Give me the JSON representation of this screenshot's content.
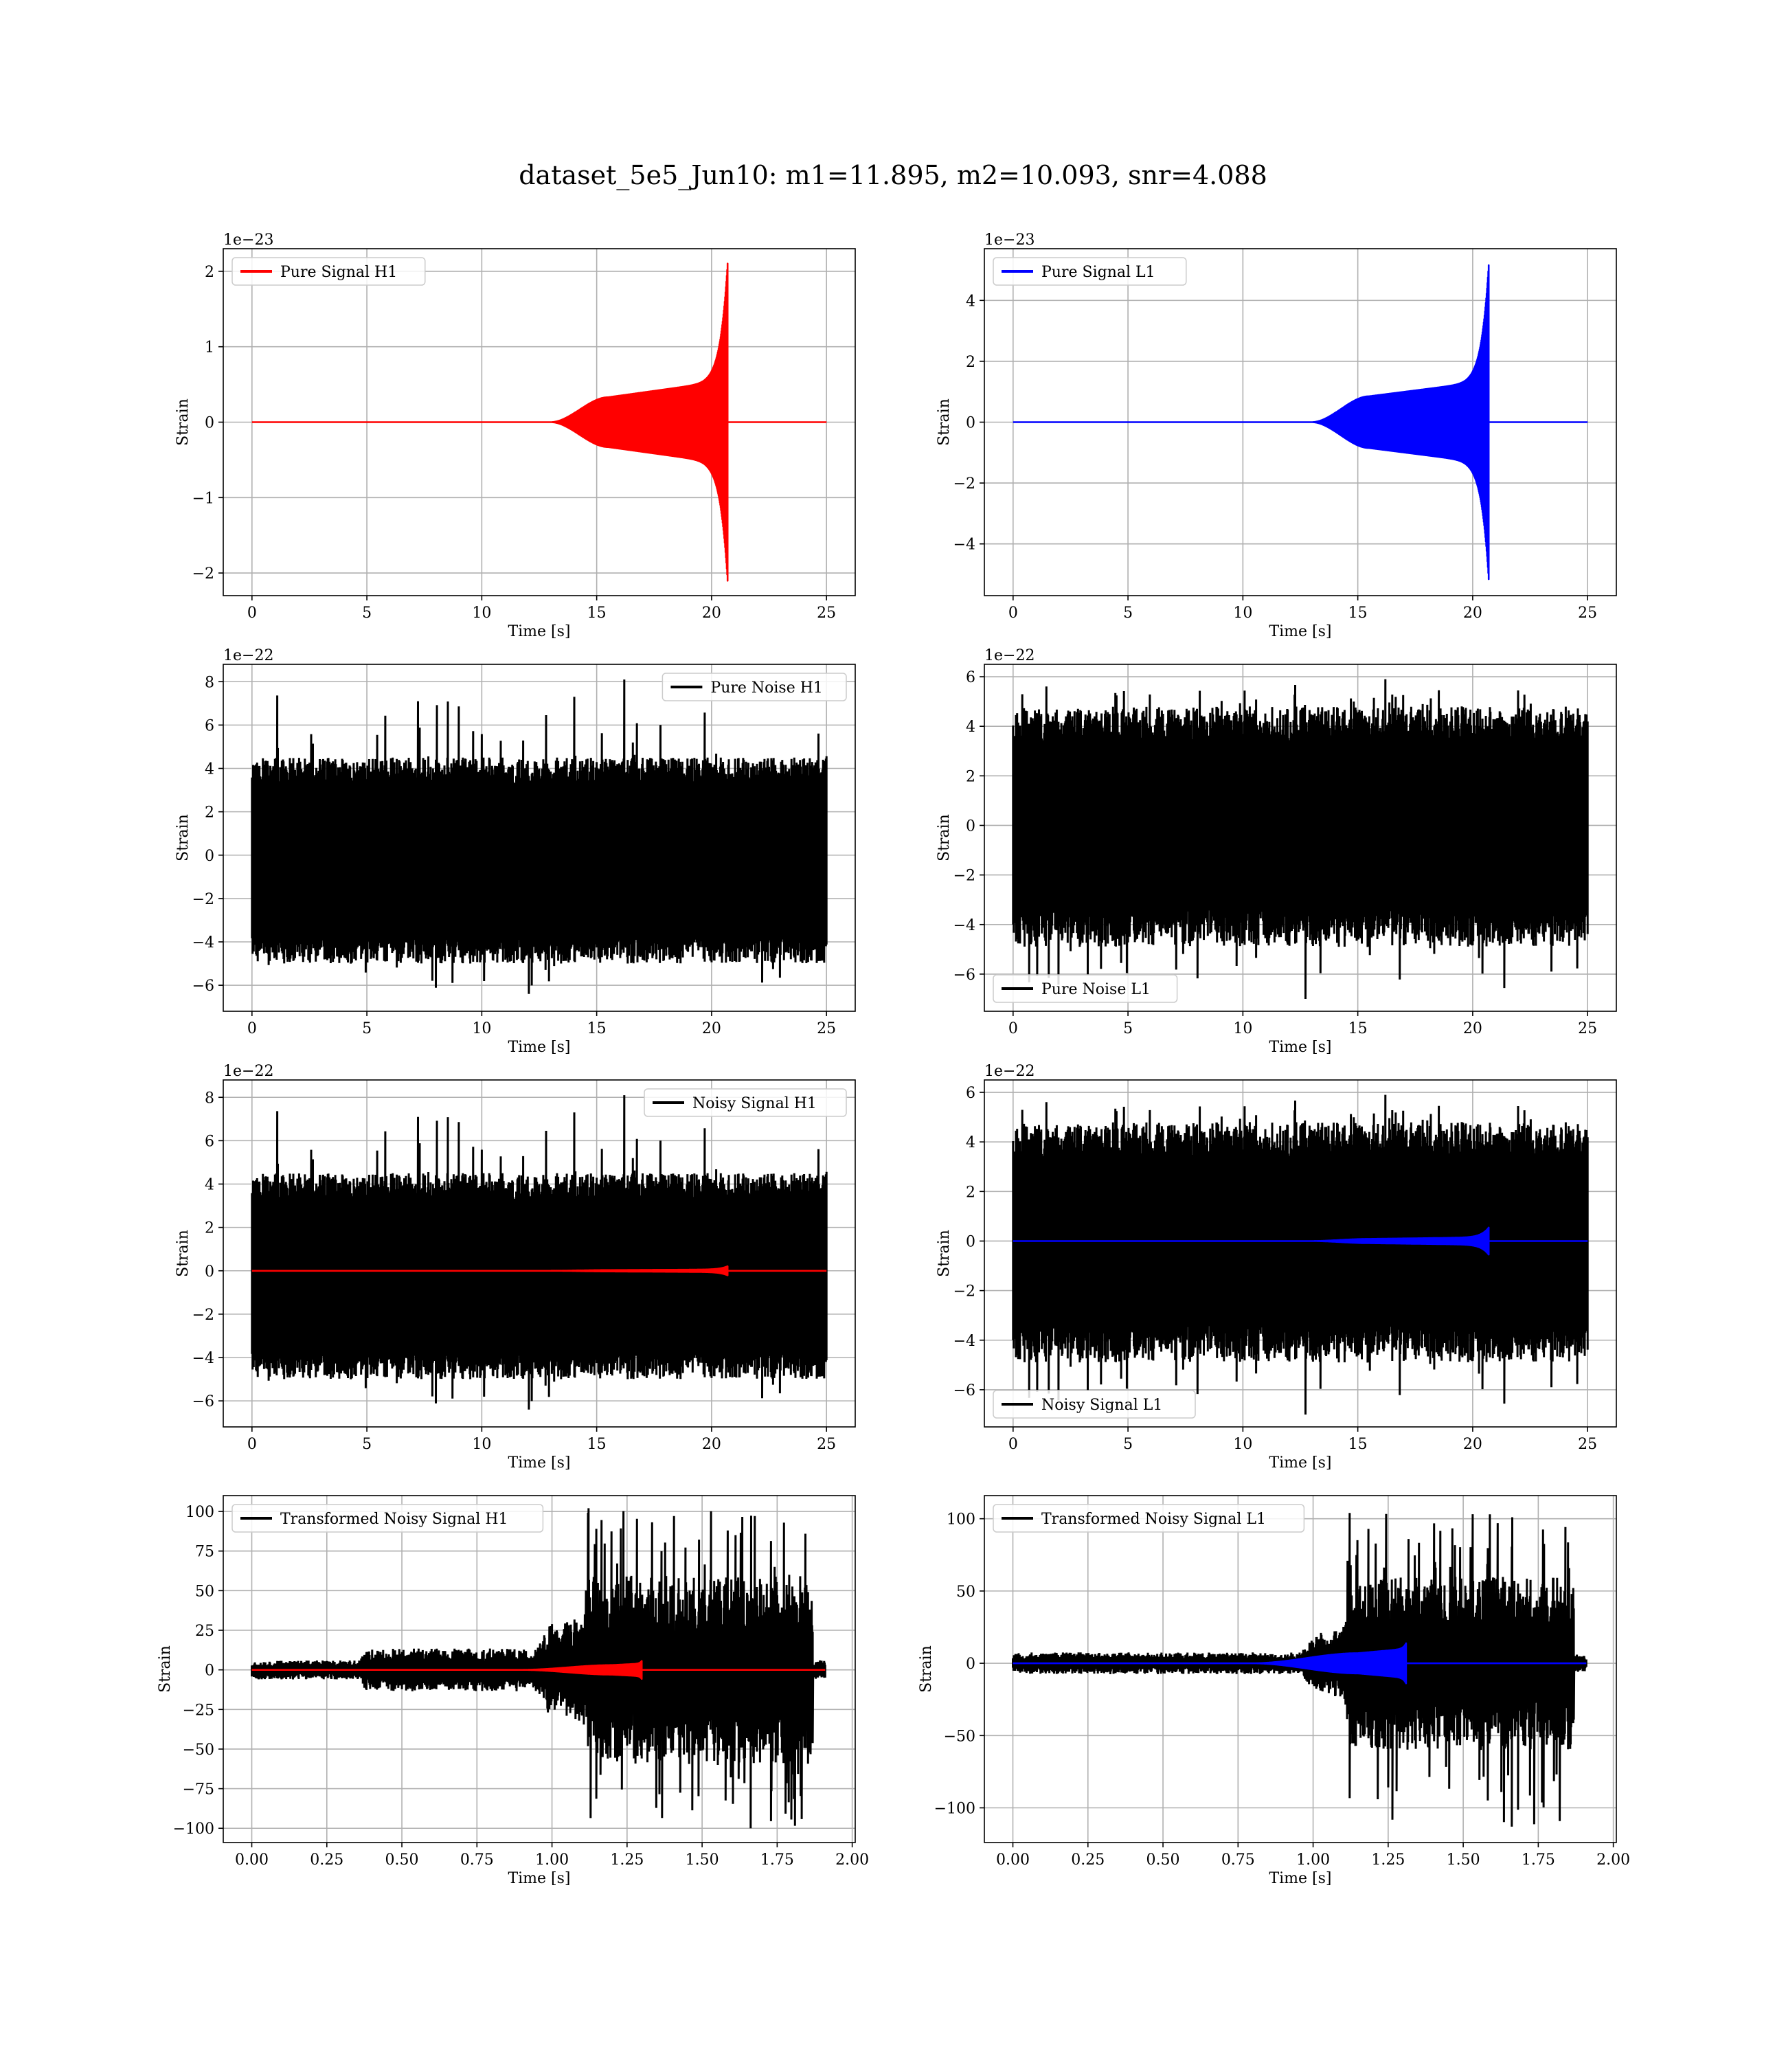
{
  "figure_title": "dataset_5e5_Jun10: m1=11.895, m2=10.093, snr=4.088",
  "chart_data": [
    {
      "type": "line",
      "id": "p1",
      "legend": "Pure Signal H1",
      "legend_loc": "upper-left",
      "xlabel": "Time [s]",
      "ylabel": "Strain",
      "offset_text": "1e−23",
      "xlim": [
        -1.25,
        26.25
      ],
      "ylim": [
        -2.3,
        2.3
      ],
      "xticks": [
        0,
        5,
        10,
        15,
        20,
        25
      ],
      "xtick_labels": [
        "0",
        "5",
        "10",
        "15",
        "20",
        "25"
      ],
      "yticks": [
        -2,
        -1,
        0,
        1,
        2
      ],
      "ytick_labels": [
        "−2",
        "−1",
        "0",
        "1",
        "2"
      ],
      "grid": true,
      "series": [
        {
          "name": "Pure Signal H1",
          "kind": "chirp",
          "color": "#ff0000",
          "x_range": [
            0,
            25
          ],
          "start": 13,
          "plateau": 15.5,
          "plateau_amp": 0.33,
          "pre_merge_amp": 0.55,
          "merger": 20.7,
          "peak_amp": 2.12
        }
      ]
    },
    {
      "type": "line",
      "id": "p2",
      "legend": "Pure Signal L1",
      "legend_loc": "upper-left",
      "xlabel": "Time [s]",
      "ylabel": "Strain",
      "offset_text": "1e−23",
      "xlim": [
        -1.25,
        26.25
      ],
      "ylim": [
        -5.7,
        5.7
      ],
      "xticks": [
        0,
        5,
        10,
        15,
        20,
        25
      ],
      "xtick_labels": [
        "0",
        "5",
        "10",
        "15",
        "20",
        "25"
      ],
      "yticks": [
        -4,
        -2,
        0,
        2,
        4
      ],
      "ytick_labels": [
        "−4",
        "−2",
        "0",
        "2",
        "4"
      ],
      "grid": true,
      "series": [
        {
          "name": "Pure Signal L1",
          "kind": "chirp",
          "color": "#0000ff",
          "x_range": [
            0,
            25
          ],
          "start": 13,
          "plateau": 15.5,
          "plateau_amp": 0.85,
          "pre_merge_amp": 1.35,
          "merger": 20.7,
          "peak_amp": 5.2
        }
      ]
    },
    {
      "type": "line",
      "id": "p3",
      "legend": "Pure Noise H1",
      "legend_loc": "upper-right",
      "xlabel": "Time [s]",
      "ylabel": "Strain",
      "offset_text": "1e−22",
      "xlim": [
        -1.25,
        26.25
      ],
      "ylim": [
        -7.2,
        8.8
      ],
      "xticks": [
        0,
        5,
        10,
        15,
        20,
        25
      ],
      "xtick_labels": [
        "0",
        "5",
        "10",
        "15",
        "20",
        "25"
      ],
      "yticks": [
        -6,
        -4,
        -2,
        0,
        2,
        4,
        6,
        8
      ],
      "ytick_labels": [
        "−6",
        "−4",
        "−2",
        "0",
        "2",
        "4",
        "6",
        "8"
      ],
      "grid": true,
      "series": [
        {
          "name": "Pure Noise H1",
          "kind": "noise",
          "color": "#000000",
          "x_range": [
            0,
            25
          ],
          "band_hi": 3.3,
          "band_lo": -3.8,
          "env_hi": 4.5,
          "env_lo": -5.0,
          "max": 8.1,
          "min": -6.4,
          "seed": 11
        }
      ]
    },
    {
      "type": "line",
      "id": "p4",
      "legend": "Pure Noise L1",
      "legend_loc": "lower-left",
      "xlabel": "Time [s]",
      "ylabel": "Strain",
      "offset_text": "1e−22",
      "xlim": [
        -1.25,
        26.25
      ],
      "ylim": [
        -7.5,
        6.5
      ],
      "xticks": [
        0,
        5,
        10,
        15,
        20,
        25
      ],
      "xtick_labels": [
        "0",
        "5",
        "10",
        "15",
        "20",
        "25"
      ],
      "yticks": [
        -6,
        -4,
        -2,
        0,
        2,
        4,
        6
      ],
      "ytick_labels": [
        "−6",
        "−4",
        "−2",
        "0",
        "2",
        "4",
        "6"
      ],
      "grid": true,
      "series": [
        {
          "name": "Pure Noise L1",
          "kind": "noise",
          "color": "#000000",
          "x_range": [
            0,
            25
          ],
          "band_hi": 3.4,
          "band_lo": -3.4,
          "env_hi": 4.8,
          "env_lo": -4.9,
          "max": 5.9,
          "min": -7.0,
          "seed": 23
        }
      ]
    },
    {
      "type": "line",
      "id": "p5",
      "legend": "Noisy Signal H1",
      "legend_loc": "upper-right",
      "xlabel": "Time [s]",
      "ylabel": "Strain",
      "offset_text": "1e−22",
      "xlim": [
        -1.25,
        26.25
      ],
      "ylim": [
        -7.2,
        8.8
      ],
      "xticks": [
        0,
        5,
        10,
        15,
        20,
        25
      ],
      "xtick_labels": [
        "0",
        "5",
        "10",
        "15",
        "20",
        "25"
      ],
      "yticks": [
        -6,
        -4,
        -2,
        0,
        2,
        4,
        6,
        8
      ],
      "ytick_labels": [
        "−6",
        "−4",
        "−2",
        "0",
        "2",
        "4",
        "6",
        "8"
      ],
      "grid": true,
      "series": [
        {
          "name": "Noisy Signal H1",
          "kind": "noise",
          "color": "#000000",
          "x_range": [
            0,
            25
          ],
          "band_hi": 3.3,
          "band_lo": -3.8,
          "env_hi": 4.5,
          "env_lo": -5.0,
          "max": 8.1,
          "min": -6.4,
          "seed": 11
        },
        {
          "kind": "chirp",
          "color": "#ff0000",
          "x_range": [
            0,
            25
          ],
          "start": 13,
          "plateau": 15.5,
          "plateau_amp": 0.03,
          "pre_merge_amp": 0.06,
          "merger": 20.7,
          "peak_amp": 0.21
        }
      ]
    },
    {
      "type": "line",
      "id": "p6",
      "legend": "Noisy Signal L1",
      "legend_loc": "lower-left",
      "xlabel": "Time [s]",
      "ylabel": "Strain",
      "offset_text": "1e−22",
      "xlim": [
        -1.25,
        26.25
      ],
      "ylim": [
        -7.5,
        6.5
      ],
      "xticks": [
        0,
        5,
        10,
        15,
        20,
        25
      ],
      "xtick_labels": [
        "0",
        "5",
        "10",
        "15",
        "20",
        "25"
      ],
      "yticks": [
        -6,
        -4,
        -2,
        0,
        2,
        4,
        6
      ],
      "ytick_labels": [
        "−6",
        "−4",
        "−2",
        "0",
        "2",
        "4",
        "6"
      ],
      "grid": true,
      "series": [
        {
          "name": "Noisy Signal L1",
          "kind": "noise",
          "color": "#000000",
          "x_range": [
            0,
            25
          ],
          "band_hi": 3.4,
          "band_lo": -3.4,
          "env_hi": 4.8,
          "env_lo": -4.9,
          "max": 5.9,
          "min": -7.0,
          "seed": 23
        },
        {
          "kind": "chirp",
          "color": "#0000ff",
          "x_range": [
            0,
            25
          ],
          "start": 13,
          "plateau": 15.5,
          "plateau_amp": 0.085,
          "pre_merge_amp": 0.15,
          "merger": 20.7,
          "peak_amp": 0.55
        }
      ]
    },
    {
      "type": "line",
      "id": "p7",
      "legend": "Transformed Noisy Signal H1",
      "legend_loc": "upper-left",
      "xlabel": "Time [s]",
      "ylabel": "Strain",
      "offset_text": "",
      "xlim": [
        -0.095,
        2.01
      ],
      "ylim": [
        -109,
        110
      ],
      "xticks": [
        0,
        0.25,
        0.5,
        0.75,
        1.0,
        1.25,
        1.5,
        1.75,
        2.0
      ],
      "xtick_labels": [
        "0.00",
        "0.25",
        "0.50",
        "0.75",
        "1.00",
        "1.25",
        "1.50",
        "1.75",
        "2.00"
      ],
      "yticks": [
        -100,
        -75,
        -50,
        -25,
        0,
        25,
        50,
        75,
        100
      ],
      "ytick_labels": [
        "−100",
        "−75",
        "−50",
        "−25",
        "0",
        "25",
        "50",
        "75",
        "100"
      ],
      "grid": true,
      "series": [
        {
          "name": "Transformed Noisy Signal H1",
          "kind": "tnoise",
          "color": "#000000",
          "x_range": [
            0,
            1.91
          ],
          "end": 1.87,
          "levels": [
            [
              0,
              4
            ],
            [
              0.36,
              4
            ],
            [
              0.38,
              9
            ],
            [
              0.95,
              9
            ],
            [
              0.99,
              19
            ],
            [
              1.1,
              22
            ],
            [
              1.12,
              40
            ],
            [
              1.87,
              40
            ]
          ],
          "max": 102,
          "min": -100,
          "seed": 37
        },
        {
          "kind": "chirp",
          "color": "#ff0000",
          "x_range": [
            0,
            1.91
          ],
          "start": 0.9,
          "plateau": 1.2,
          "plateau_amp": 3,
          "pre_merge_amp": 4,
          "merger": 1.3,
          "peak_amp": 6
        }
      ]
    },
    {
      "type": "line",
      "id": "p8",
      "legend": "Transformed Noisy Signal L1",
      "legend_loc": "upper-left",
      "xlabel": "Time [s]",
      "ylabel": "Strain",
      "offset_text": "",
      "xlim": [
        -0.095,
        2.01
      ],
      "ylim": [
        -124,
        116
      ],
      "xticks": [
        0,
        0.25,
        0.5,
        0.75,
        1.0,
        1.25,
        1.5,
        1.75,
        2.0
      ],
      "xtick_labels": [
        "0.00",
        "0.25",
        "0.50",
        "0.75",
        "1.00",
        "1.25",
        "1.50",
        "1.75",
        "2.00"
      ],
      "yticks": [
        -100,
        -50,
        0,
        50,
        100
      ],
      "ytick_labels": [
        "−100",
        "−50",
        "0",
        "50",
        "100"
      ],
      "grid": true,
      "series": [
        {
          "name": "Transformed Noisy Signal L1",
          "kind": "tnoise",
          "color": "#000000",
          "x_range": [
            0,
            1.91
          ],
          "end": 1.87,
          "levels": [
            [
              0,
              5
            ],
            [
              0.95,
              5
            ],
            [
              1.02,
              14
            ],
            [
              1.1,
              16
            ],
            [
              1.12,
              40
            ],
            [
              1.87,
              40
            ]
          ],
          "max": 104,
          "min": -113,
          "seed": 53
        },
        {
          "kind": "chirp",
          "color": "#0000ff",
          "x_range": [
            0,
            1.91
          ],
          "start": 0.8,
          "plateau": 1.15,
          "plateau_amp": 7,
          "pre_merge_amp": 10,
          "merger": 1.31,
          "peak_amp": 14
        }
      ]
    }
  ]
}
